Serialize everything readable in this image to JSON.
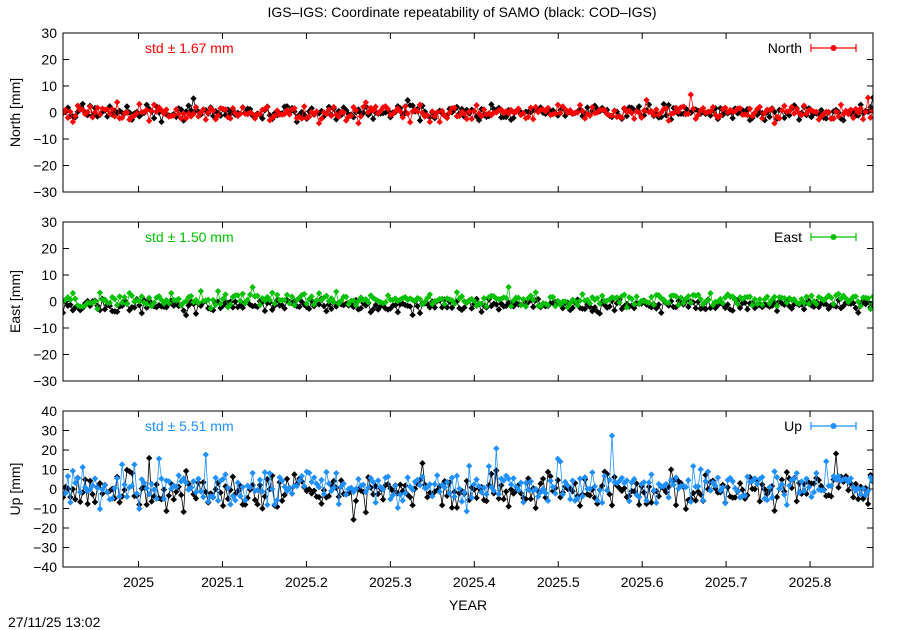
{
  "page": {
    "title": "IGS–IGS: Coordinate repeatability of SAMO (black: COD–IGS)",
    "timestamp": "27/11/25 13:02",
    "xlabel": "YEAR"
  },
  "chart_data": [
    {
      "type": "line",
      "component": "north",
      "ylabel": "North [mm]",
      "ylim": [
        -30,
        30
      ],
      "yticks": [
        -30,
        -20,
        -10,
        0,
        10,
        20,
        30
      ],
      "xlim": [
        2024.91,
        2025.875
      ],
      "xticks": [
        2025,
        2025.1,
        2025.2,
        2025.3,
        2025.4,
        2025.5,
        2025.6,
        2025.7,
        2025.8
      ],
      "xticklabels": [
        "2025",
        "2025.1",
        "2025.2",
        "2025.3",
        "2025.4",
        "2025.5",
        "2025.6",
        "2025.7",
        "2025.8"
      ],
      "std_label": "std ± 1.67 mm",
      "legend": "North",
      "color": "#ff0000",
      "series": [
        {
          "role": "reference",
          "color": "#000000",
          "amplitude": 1.6,
          "spike": 4,
          "offset": 0
        },
        {
          "role": "primary",
          "color": "#ff0000",
          "amplitude": 1.67,
          "spike": 5,
          "offset": 0
        }
      ]
    },
    {
      "type": "line",
      "component": "east",
      "ylabel": "East [mm]",
      "ylim": [
        -30,
        30
      ],
      "yticks": [
        -30,
        -20,
        -10,
        0,
        10,
        20,
        30
      ],
      "xlim": [
        2024.91,
        2025.875
      ],
      "xticks": [
        2025,
        2025.1,
        2025.2,
        2025.3,
        2025.4,
        2025.5,
        2025.6,
        2025.7,
        2025.8
      ],
      "xticklabels": [
        "2025",
        "2025.1",
        "2025.2",
        "2025.3",
        "2025.4",
        "2025.5",
        "2025.6",
        "2025.7",
        "2025.8"
      ],
      "std_label": "std ± 1.50 mm",
      "legend": "East",
      "color": "#00c000",
      "series": [
        {
          "role": "reference",
          "color": "#000000",
          "amplitude": 1.4,
          "spike": 4,
          "offset": -1.5
        },
        {
          "role": "primary",
          "color": "#00c000",
          "amplitude": 1.5,
          "spike": 4,
          "offset": 0.6
        }
      ]
    },
    {
      "type": "line",
      "component": "up",
      "ylabel": "Up [mm]",
      "ylim": [
        -40,
        40
      ],
      "yticks": [
        -40,
        -30,
        -20,
        -10,
        0,
        10,
        20,
        30,
        40
      ],
      "xlim": [
        2024.91,
        2025.875
      ],
      "xticks": [
        2025,
        2025.1,
        2025.2,
        2025.3,
        2025.4,
        2025.5,
        2025.6,
        2025.7,
        2025.8
      ],
      "xticklabels": [
        "2025",
        "2025.1",
        "2025.2",
        "2025.3",
        "2025.4",
        "2025.5",
        "2025.6",
        "2025.7",
        "2025.8"
      ],
      "std_label": "std ± 5.51 mm",
      "legend": "Up",
      "color": "#1e90ff",
      "series": [
        {
          "role": "reference",
          "color": "#000000",
          "amplitude": 4.5,
          "spike": 13,
          "offset": -1
        },
        {
          "role": "primary",
          "color": "#1e90ff",
          "amplitude": 5.51,
          "spike": 18,
          "offset": 1
        }
      ]
    }
  ]
}
